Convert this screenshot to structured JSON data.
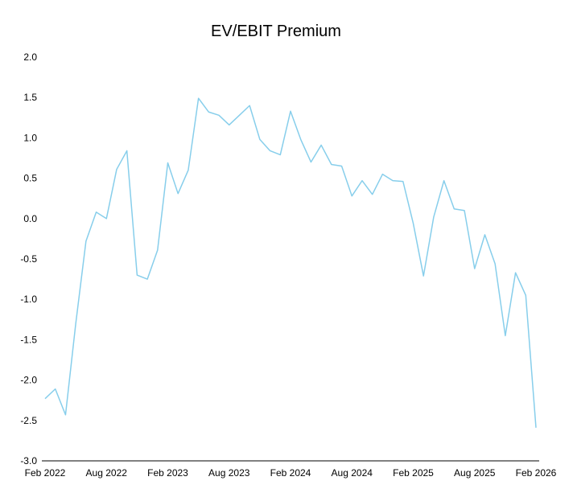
{
  "chart_data": {
    "type": "line",
    "title": "EV/EBIT Premium",
    "xlabel": "",
    "ylabel": "",
    "ylim": [
      -3.0,
      2.0
    ],
    "grid": false,
    "legend": "none",
    "x_ticks": [
      "Feb 2022",
      "Aug 2022",
      "Feb 2023",
      "Aug 2023",
      "Feb 2024",
      "Aug 2024",
      "Feb 2025",
      "Aug 2025",
      "Feb 2026"
    ],
    "y_ticks": [
      "2.0",
      "1.5",
      "1.0",
      "0.5",
      "0.0",
      "-0.5",
      "-1.0",
      "-1.5",
      "-2.0",
      "-2.5",
      "-3.0"
    ],
    "series": [
      {
        "color": "#87ceeb",
        "x": [
          "2022-02",
          "2022-03",
          "2022-04",
          "2022-05",
          "2022-06",
          "2022-07",
          "2022-08",
          "2022-09",
          "2022-10",
          "2022-11",
          "2022-12",
          "2023-01",
          "2023-02",
          "2023-03",
          "2023-04",
          "2023-05",
          "2023-06",
          "2023-07",
          "2023-08",
          "2023-09",
          "2023-10",
          "2023-11",
          "2023-12",
          "2024-01",
          "2024-02",
          "2024-03",
          "2024-04",
          "2024-05",
          "2024-06",
          "2024-07",
          "2024-08",
          "2024-09",
          "2024-10",
          "2024-11",
          "2024-12",
          "2025-01",
          "2025-02",
          "2025-03",
          "2025-04",
          "2025-05",
          "2025-06",
          "2025-07",
          "2025-08",
          "2025-09",
          "2025-10",
          "2025-11",
          "2025-12",
          "2026-01",
          "2026-02"
        ],
        "values": [
          -2.23,
          -2.11,
          -2.43,
          -1.3,
          -0.28,
          0.08,
          0.0,
          0.61,
          0.84,
          -0.7,
          -0.75,
          -0.39,
          0.69,
          0.31,
          0.6,
          1.49,
          1.32,
          1.28,
          1.16,
          1.28,
          1.4,
          0.98,
          0.84,
          0.79,
          1.33,
          0.98,
          0.7,
          0.91,
          0.67,
          0.65,
          0.28,
          0.47,
          0.3,
          0.55,
          0.47,
          0.46,
          -0.06,
          -0.71,
          0.02,
          0.47,
          0.12,
          0.1,
          -0.62,
          -0.2,
          -0.56,
          -1.45,
          -0.67,
          -0.95,
          -2.59
        ]
      }
    ]
  }
}
